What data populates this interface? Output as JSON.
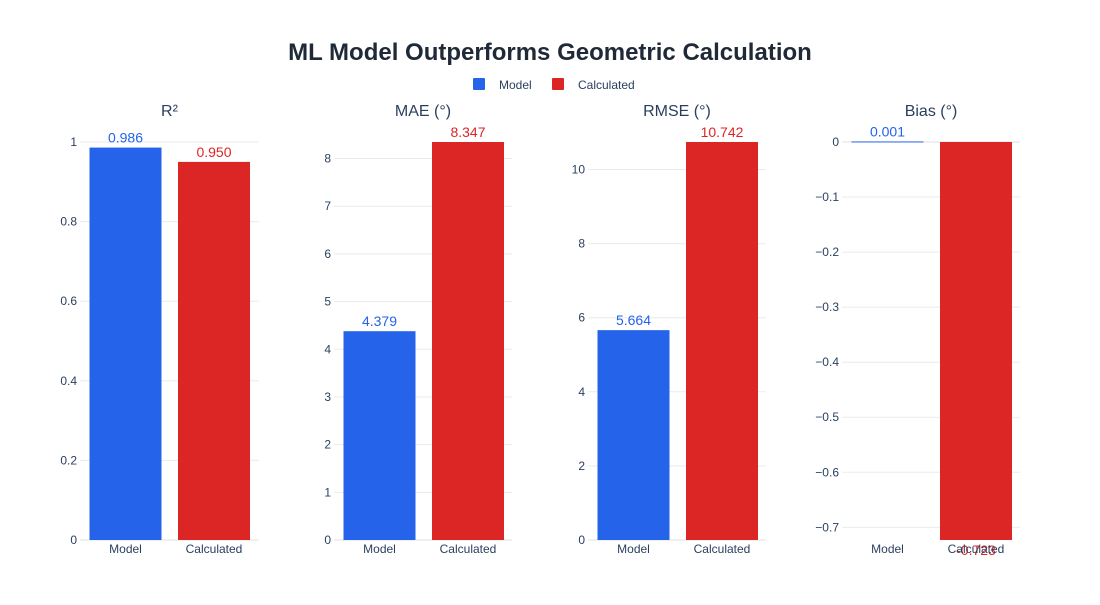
{
  "chart_data": {
    "type": "bar",
    "title": "ML Model Outperforms Geometric Calculation",
    "legend": {
      "position": "top-center",
      "entries": [
        {
          "name": "Model",
          "color": "#2563eb"
        },
        {
          "name": "Calculated",
          "color": "#dc2626"
        }
      ]
    },
    "categories": [
      "Model",
      "Calculated"
    ],
    "subplots": [
      {
        "key": "r2",
        "title": "R²",
        "values": [
          0.986,
          0.95
        ],
        "labels": [
          "0.986",
          "0.950"
        ],
        "ylim": [
          0,
          1.0
        ],
        "yticks": [
          0,
          0.2,
          0.4,
          0.6,
          0.8,
          1
        ],
        "ytick_labels": [
          "0",
          "0.2",
          "0.4",
          "0.6",
          "0.8",
          "1"
        ]
      },
      {
        "key": "mae",
        "title": "MAE (°)",
        "values": [
          4.379,
          8.347
        ],
        "labels": [
          "4.379",
          "8.347"
        ],
        "ylim": [
          0,
          8.347
        ],
        "yticks": [
          0,
          1,
          2,
          3,
          4,
          5,
          6,
          7,
          8
        ],
        "ytick_labels": [
          "0",
          "1",
          "2",
          "3",
          "4",
          "5",
          "6",
          "7",
          "8"
        ]
      },
      {
        "key": "rmse",
        "title": "RMSE (°)",
        "values": [
          5.664,
          10.742
        ],
        "labels": [
          "5.664",
          "10.742"
        ],
        "ylim": [
          0,
          10.742
        ],
        "yticks": [
          0,
          2,
          4,
          6,
          8,
          10
        ],
        "ytick_labels": [
          "0",
          "2",
          "4",
          "6",
          "8",
          "10"
        ]
      },
      {
        "key": "bias",
        "title": "Bias (°)",
        "values": [
          0.001,
          -0.723
        ],
        "labels": [
          "0.001",
          "-0.723"
        ],
        "ylim": [
          -0.723,
          0
        ],
        "yticks": [
          0,
          -0.1,
          -0.2,
          -0.3,
          -0.4,
          -0.5,
          -0.6,
          -0.7
        ],
        "ytick_labels": [
          "0",
          "−0.1",
          "−0.2",
          "−0.3",
          "−0.4",
          "−0.5",
          "−0.6",
          "−0.7"
        ]
      }
    ],
    "grid": true
  }
}
